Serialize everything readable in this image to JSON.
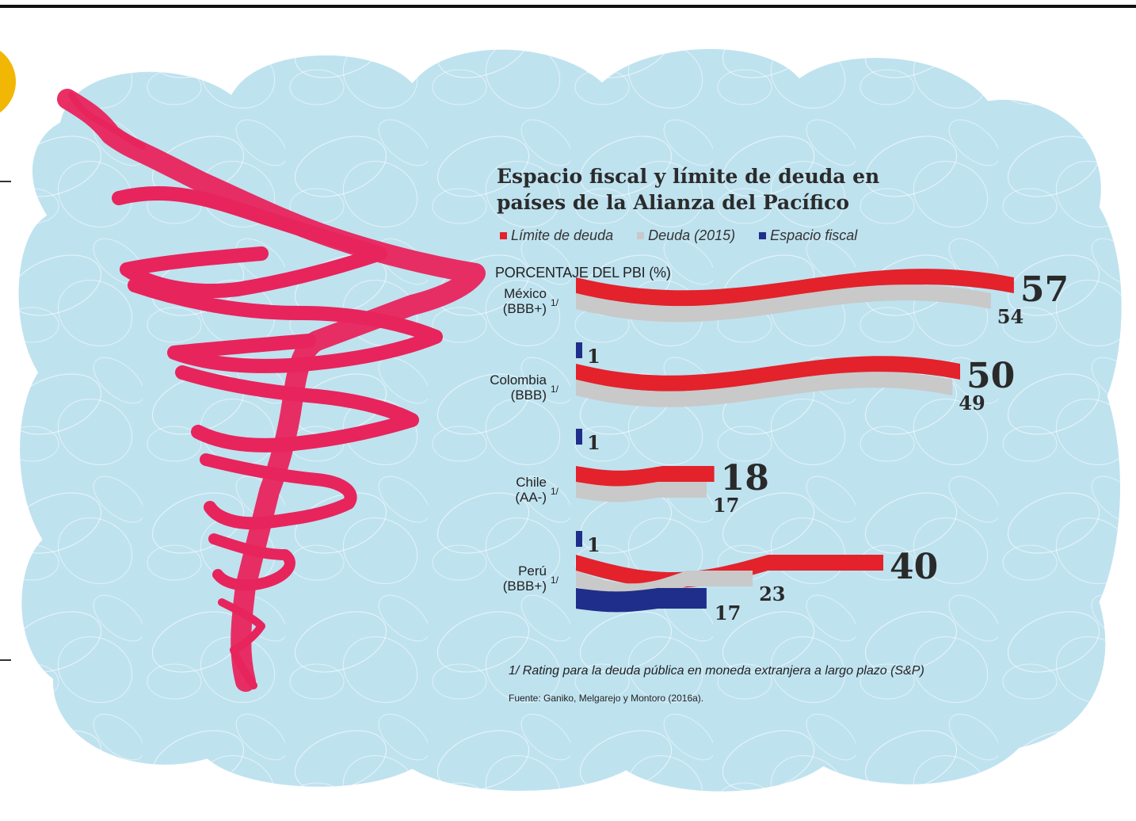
{
  "chart_data": {
    "type": "bar",
    "title": "Espacio fiscal y límite de deuda en países de la Alianza del Pacífico",
    "ylabel": "PORCENTAJE DEL PBI (%)",
    "legend_position": "top",
    "categories": [
      "México (BBB+) 1/",
      "Colombia (BBB) 1/",
      "Chile (AA-) 1/",
      "Perú (BBB+) 1/"
    ],
    "category_lines": [
      [
        "México",
        "(BBB+)"
      ],
      [
        "Colombia",
        "(BBB)"
      ],
      [
        "Chile",
        "(AA-)"
      ],
      [
        "Perú",
        "(BBB+)"
      ]
    ],
    "category_note": "1/",
    "series": [
      {
        "name": "Límite de deuda",
        "color": "#e3222b",
        "values": [
          57,
          50,
          18,
          40
        ]
      },
      {
        "name": "Deuda (2015)",
        "color": "#c9c9c9",
        "values": [
          54,
          49,
          17,
          23
        ]
      },
      {
        "name": "Espacio fiscal",
        "color": "#1f2e8a",
        "values": [
          1,
          1,
          1,
          17
        ]
      }
    ],
    "value_labels": {
      "limite": [
        "57",
        "50",
        "18",
        "40"
      ],
      "deuda": [
        "54",
        "49",
        "17",
        "23"
      ],
      "espacio": [
        "1",
        "1",
        "1",
        "17"
      ]
    }
  },
  "legend": {
    "limite": "Límite de deuda",
    "deuda": "Deuda (2015)",
    "espacio": "Espacio fiscal"
  },
  "notes": {
    "rating": "1/ Rating para la deuda pública en moneda extranjera a largo plazo (S&P)",
    "source": "Fuente: Ganiko, Melgarejo y Montoro (2016a)."
  },
  "colors": {
    "cloud": "#bfe2ef",
    "cloud_outline": "#ffffff",
    "map": "#e8245c"
  },
  "icons": [
    "south-america-map-icon"
  ]
}
